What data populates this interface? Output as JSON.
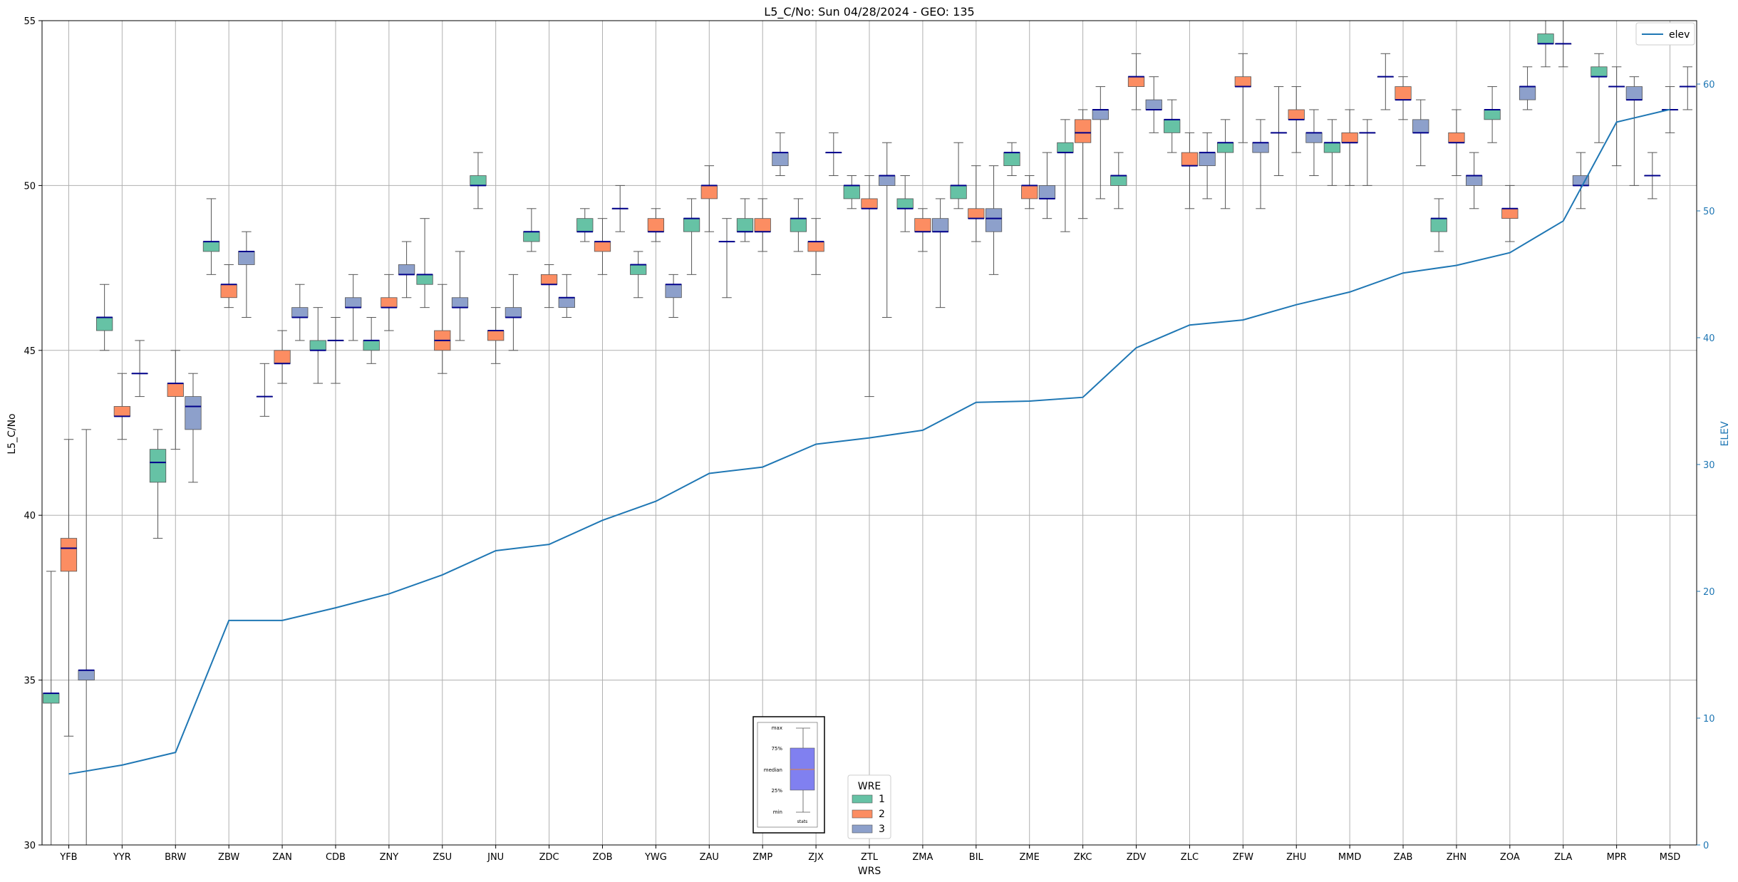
{
  "chart_data": {
    "type": "box",
    "title": "L5_C/No: Sun 04/28/2024 - GEO: 135",
    "xlabel": "WRS",
    "ylabel": "L5_C/No",
    "y2label": "ELEV",
    "ylim": [
      30,
      55
    ],
    "y2lim": [
      0,
      65
    ],
    "yticks": [
      30,
      35,
      40,
      45,
      50,
      55
    ],
    "y2ticks": [
      0,
      10,
      20,
      30,
      40,
      50,
      60
    ],
    "grid": true,
    "colors": {
      "wre1": "#66c2a5",
      "wre2": "#fc8d62",
      "wre3": "#8da0cb",
      "elev": "#1f77b4",
      "median": "#00008b"
    },
    "categories": [
      "YFB",
      "YYR",
      "BRW",
      "ZBW",
      "ZAN",
      "CDB",
      "ZNY",
      "ZSU",
      "JNU",
      "ZDC",
      "ZOB",
      "YWG",
      "ZAU",
      "ZMP",
      "ZJX",
      "ZTL",
      "ZMA",
      "BIL",
      "ZME",
      "ZKC",
      "ZDV",
      "ZLC",
      "ZFW",
      "ZHU",
      "MMD",
      "ZAB",
      "ZHN",
      "ZOA",
      "ZLA",
      "MPR",
      "MSD"
    ],
    "legend_wre": {
      "title": "WRE",
      "entries": [
        "1",
        "2",
        "3"
      ]
    },
    "legend_elev": {
      "label": "elev",
      "position": "upper-right"
    },
    "legend_key": {
      "labels": [
        "max",
        "75%",
        "median",
        "25%",
        "min"
      ],
      "caption": "stats"
    },
    "boxes": [
      {
        "s": "YFB",
        "w": 1,
        "min": 30.0,
        "q1": 34.3,
        "med": 34.6,
        "q3": 34.6,
        "max": 38.3
      },
      {
        "s": "YFB",
        "w": 2,
        "min": 33.3,
        "q1": 38.3,
        "med": 39.0,
        "q3": 39.3,
        "max": 42.3
      },
      {
        "s": "YFB",
        "w": 3,
        "min": 30.0,
        "q1": 35.0,
        "med": 35.3,
        "q3": 35.3,
        "max": 42.6
      },
      {
        "s": "YYR",
        "w": 1,
        "min": 45.0,
        "q1": 45.6,
        "med": 46.0,
        "q3": 46.0,
        "max": 47.0
      },
      {
        "s": "YYR",
        "w": 2,
        "min": 42.3,
        "q1": 43.0,
        "med": 43.0,
        "q3": 43.3,
        "max": 44.3
      },
      {
        "s": "YYR",
        "w": 3,
        "min": 43.6,
        "q1": 44.3,
        "med": 44.3,
        "q3": 44.3,
        "max": 45.3
      },
      {
        "s": "BRW",
        "w": 1,
        "min": 39.3,
        "q1": 41.0,
        "med": 41.6,
        "q3": 42.0,
        "max": 42.6
      },
      {
        "s": "BRW",
        "w": 2,
        "min": 42.0,
        "q1": 43.6,
        "med": 44.0,
        "q3": 44.0,
        "max": 45.0
      },
      {
        "s": "BRW",
        "w": 3,
        "min": 41.0,
        "q1": 42.6,
        "med": 43.3,
        "q3": 43.6,
        "max": 44.3
      },
      {
        "s": "ZBW",
        "w": 1,
        "min": 47.3,
        "q1": 48.0,
        "med": 48.3,
        "q3": 48.3,
        "max": 49.6
      },
      {
        "s": "ZBW",
        "w": 2,
        "min": 46.3,
        "q1": 46.6,
        "med": 47.0,
        "q3": 47.0,
        "max": 47.6
      },
      {
        "s": "ZBW",
        "w": 3,
        "min": 46.0,
        "q1": 47.6,
        "med": 48.0,
        "q3": 48.0,
        "max": 48.6
      },
      {
        "s": "ZAN",
        "w": 1,
        "min": 43.0,
        "q1": 43.6,
        "med": 43.6,
        "q3": 43.6,
        "max": 44.6
      },
      {
        "s": "ZAN",
        "w": 2,
        "min": 44.0,
        "q1": 44.6,
        "med": 44.6,
        "q3": 45.0,
        "max": 45.6
      },
      {
        "s": "ZAN",
        "w": 3,
        "min": 45.3,
        "q1": 46.0,
        "med": 46.0,
        "q3": 46.3,
        "max": 47.0
      },
      {
        "s": "CDB",
        "w": 1,
        "min": 44.0,
        "q1": 45.0,
        "med": 45.0,
        "q3": 45.3,
        "max": 46.3
      },
      {
        "s": "CDB",
        "w": 2,
        "min": 44.0,
        "q1": 45.3,
        "med": 45.3,
        "q3": 45.3,
        "max": 46.0
      },
      {
        "s": "CDB",
        "w": 3,
        "min": 45.3,
        "q1": 46.3,
        "med": 46.3,
        "q3": 46.6,
        "max": 47.3
      },
      {
        "s": "ZNY",
        "w": 1,
        "min": 44.6,
        "q1": 45.0,
        "med": 45.3,
        "q3": 45.3,
        "max": 46.0
      },
      {
        "s": "ZNY",
        "w": 2,
        "min": 45.6,
        "q1": 46.3,
        "med": 46.3,
        "q3": 46.6,
        "max": 47.3
      },
      {
        "s": "ZNY",
        "w": 3,
        "min": 46.6,
        "q1": 47.3,
        "med": 47.3,
        "q3": 47.6,
        "max": 48.3
      },
      {
        "s": "ZSU",
        "w": 1,
        "min": 46.3,
        "q1": 47.0,
        "med": 47.3,
        "q3": 47.3,
        "max": 49.0
      },
      {
        "s": "ZSU",
        "w": 2,
        "min": 44.3,
        "q1": 45.0,
        "med": 45.3,
        "q3": 45.6,
        "max": 47.0
      },
      {
        "s": "ZSU",
        "w": 3,
        "min": 45.3,
        "q1": 46.3,
        "med": 46.3,
        "q3": 46.6,
        "max": 48.0
      },
      {
        "s": "JNU",
        "w": 1,
        "min": 49.3,
        "q1": 50.0,
        "med": 50.0,
        "q3": 50.3,
        "max": 51.0
      },
      {
        "s": "JNU",
        "w": 2,
        "min": 44.6,
        "q1": 45.3,
        "med": 45.6,
        "q3": 45.6,
        "max": 46.3
      },
      {
        "s": "JNU",
        "w": 3,
        "min": 45.0,
        "q1": 46.0,
        "med": 46.0,
        "q3": 46.3,
        "max": 47.3
      },
      {
        "s": "ZDC",
        "w": 1,
        "min": 48.0,
        "q1": 48.3,
        "med": 48.6,
        "q3": 48.6,
        "max": 49.3
      },
      {
        "s": "ZDC",
        "w": 2,
        "min": 46.3,
        "q1": 47.0,
        "med": 47.0,
        "q3": 47.3,
        "max": 47.6
      },
      {
        "s": "ZDC",
        "w": 3,
        "min": 46.0,
        "q1": 46.3,
        "med": 46.6,
        "q3": 46.6,
        "max": 47.3
      },
      {
        "s": "ZOB",
        "w": 1,
        "min": 48.3,
        "q1": 48.6,
        "med": 48.6,
        "q3": 49.0,
        "max": 49.3
      },
      {
        "s": "ZOB",
        "w": 2,
        "min": 47.3,
        "q1": 48.0,
        "med": 48.3,
        "q3": 48.3,
        "max": 49.0
      },
      {
        "s": "ZOB",
        "w": 3,
        "min": 48.6,
        "q1": 49.3,
        "med": 49.3,
        "q3": 49.3,
        "max": 50.0
      },
      {
        "s": "YWG",
        "w": 1,
        "min": 46.6,
        "q1": 47.3,
        "med": 47.6,
        "q3": 47.6,
        "max": 48.0
      },
      {
        "s": "YWG",
        "w": 2,
        "min": 48.3,
        "q1": 48.6,
        "med": 48.6,
        "q3": 49.0,
        "max": 49.3
      },
      {
        "s": "YWG",
        "w": 3,
        "min": 46.0,
        "q1": 46.6,
        "med": 47.0,
        "q3": 47.0,
        "max": 47.3
      },
      {
        "s": "ZAU",
        "w": 1,
        "min": 47.3,
        "q1": 48.6,
        "med": 49.0,
        "q3": 49.0,
        "max": 49.6
      },
      {
        "s": "ZAU",
        "w": 2,
        "min": 48.6,
        "q1": 49.6,
        "med": 50.0,
        "q3": 50.0,
        "max": 50.6
      },
      {
        "s": "ZAU",
        "w": 3,
        "min": 46.6,
        "q1": 48.3,
        "med": 48.3,
        "q3": 48.3,
        "max": 49.0
      },
      {
        "s": "ZMP",
        "w": 1,
        "min": 48.3,
        "q1": 48.6,
        "med": 48.6,
        "q3": 49.0,
        "max": 49.6
      },
      {
        "s": "ZMP",
        "w": 2,
        "min": 48.0,
        "q1": 48.6,
        "med": 48.6,
        "q3": 49.0,
        "max": 49.6
      },
      {
        "s": "ZMP",
        "w": 3,
        "min": 50.3,
        "q1": 50.6,
        "med": 51.0,
        "q3": 51.0,
        "max": 51.6
      },
      {
        "s": "ZJX",
        "w": 1,
        "min": 48.0,
        "q1": 48.6,
        "med": 49.0,
        "q3": 49.0,
        "max": 49.6
      },
      {
        "s": "ZJX",
        "w": 2,
        "min": 47.3,
        "q1": 48.0,
        "med": 48.3,
        "q3": 48.3,
        "max": 49.0
      },
      {
        "s": "ZJX",
        "w": 3,
        "min": 50.3,
        "q1": 51.0,
        "med": 51.0,
        "q3": 51.0,
        "max": 51.6
      },
      {
        "s": "ZTL",
        "w": 1,
        "min": 49.3,
        "q1": 49.6,
        "med": 50.0,
        "q3": 50.0,
        "max": 50.3
      },
      {
        "s": "ZTL",
        "w": 2,
        "min": 43.6,
        "q1": 49.3,
        "med": 49.3,
        "q3": 49.6,
        "max": 50.3
      },
      {
        "s": "ZTL",
        "w": 3,
        "min": 46.0,
        "q1": 50.0,
        "med": 50.3,
        "q3": 50.3,
        "max": 51.3
      },
      {
        "s": "ZMA",
        "w": 1,
        "min": 48.6,
        "q1": 49.3,
        "med": 49.3,
        "q3": 49.6,
        "max": 50.3
      },
      {
        "s": "ZMA",
        "w": 2,
        "min": 48.0,
        "q1": 48.6,
        "med": 48.6,
        "q3": 49.0,
        "max": 49.3
      },
      {
        "s": "ZMA",
        "w": 3,
        "min": 46.3,
        "q1": 48.6,
        "med": 48.6,
        "q3": 49.0,
        "max": 49.6
      },
      {
        "s": "BIL",
        "w": 1,
        "min": 49.3,
        "q1": 49.6,
        "med": 50.0,
        "q3": 50.0,
        "max": 51.3
      },
      {
        "s": "BIL",
        "w": 2,
        "min": 48.3,
        "q1": 49.0,
        "med": 49.0,
        "q3": 49.3,
        "max": 50.6
      },
      {
        "s": "BIL",
        "w": 3,
        "min": 47.3,
        "q1": 48.6,
        "med": 49.0,
        "q3": 49.3,
        "max": 50.6
      },
      {
        "s": "ZME",
        "w": 1,
        "min": 50.3,
        "q1": 50.6,
        "med": 51.0,
        "q3": 51.0,
        "max": 51.3
      },
      {
        "s": "ZME",
        "w": 2,
        "min": 49.3,
        "q1": 49.6,
        "med": 50.0,
        "q3": 50.0,
        "max": 50.3
      },
      {
        "s": "ZME",
        "w": 3,
        "min": 49.0,
        "q1": 49.6,
        "med": 49.6,
        "q3": 50.0,
        "max": 51.0
      },
      {
        "s": "ZKC",
        "w": 1,
        "min": 48.6,
        "q1": 51.0,
        "med": 51.0,
        "q3": 51.3,
        "max": 52.0
      },
      {
        "s": "ZKC",
        "w": 2,
        "min": 49.0,
        "q1": 51.3,
        "med": 51.6,
        "q3": 52.0,
        "max": 52.3
      },
      {
        "s": "ZKC",
        "w": 3,
        "min": 49.6,
        "q1": 52.0,
        "med": 52.3,
        "q3": 52.3,
        "max": 53.0
      },
      {
        "s": "ZDV",
        "w": 1,
        "min": 49.3,
        "q1": 50.0,
        "med": 50.3,
        "q3": 50.3,
        "max": 51.0
      },
      {
        "s": "ZDV",
        "w": 2,
        "min": 52.3,
        "q1": 53.0,
        "med": 53.3,
        "q3": 53.3,
        "max": 54.0
      },
      {
        "s": "ZDV",
        "w": 3,
        "min": 51.6,
        "q1": 52.3,
        "med": 52.3,
        "q3": 52.6,
        "max": 53.3
      },
      {
        "s": "ZLC",
        "w": 1,
        "min": 51.0,
        "q1": 51.6,
        "med": 52.0,
        "q3": 52.0,
        "max": 52.6
      },
      {
        "s": "ZLC",
        "w": 2,
        "min": 49.3,
        "q1": 50.6,
        "med": 50.6,
        "q3": 51.0,
        "max": 51.6
      },
      {
        "s": "ZLC",
        "w": 3,
        "min": 49.6,
        "q1": 50.6,
        "med": 51.0,
        "q3": 51.0,
        "max": 51.6
      },
      {
        "s": "ZFW",
        "w": 1,
        "min": 49.3,
        "q1": 51.0,
        "med": 51.3,
        "q3": 51.3,
        "max": 52.0
      },
      {
        "s": "ZFW",
        "w": 2,
        "min": 51.3,
        "q1": 53.0,
        "med": 53.0,
        "q3": 53.3,
        "max": 54.0
      },
      {
        "s": "ZFW",
        "w": 3,
        "min": 49.3,
        "q1": 51.0,
        "med": 51.3,
        "q3": 51.3,
        "max": 52.0
      },
      {
        "s": "ZHU",
        "w": 1,
        "min": 50.3,
        "q1": 51.6,
        "med": 51.6,
        "q3": 51.6,
        "max": 53.0
      },
      {
        "s": "ZHU",
        "w": 2,
        "min": 51.0,
        "q1": 52.0,
        "med": 52.0,
        "q3": 52.3,
        "max": 53.0
      },
      {
        "s": "ZHU",
        "w": 3,
        "min": 50.3,
        "q1": 51.3,
        "med": 51.6,
        "q3": 51.6,
        "max": 52.3
      },
      {
        "s": "MMD",
        "w": 1,
        "min": 50.0,
        "q1": 51.0,
        "med": 51.3,
        "q3": 51.3,
        "max": 52.0
      },
      {
        "s": "MMD",
        "w": 2,
        "min": 50.0,
        "q1": 51.3,
        "med": 51.3,
        "q3": 51.6,
        "max": 52.3
      },
      {
        "s": "MMD",
        "w": 3,
        "min": 50.0,
        "q1": 51.6,
        "med": 51.6,
        "q3": 51.6,
        "max": 52.0
      },
      {
        "s": "ZAB",
        "w": 1,
        "min": 52.3,
        "q1": 53.3,
        "med": 53.3,
        "q3": 53.3,
        "max": 54.0
      },
      {
        "s": "ZAB",
        "w": 2,
        "min": 52.0,
        "q1": 52.6,
        "med": 52.6,
        "q3": 53.0,
        "max": 53.3
      },
      {
        "s": "ZAB",
        "w": 3,
        "min": 50.6,
        "q1": 51.6,
        "med": 51.6,
        "q3": 52.0,
        "max": 52.6
      },
      {
        "s": "ZHN",
        "w": 1,
        "min": 48.0,
        "q1": 48.6,
        "med": 49.0,
        "q3": 49.0,
        "max": 49.6
      },
      {
        "s": "ZHN",
        "w": 2,
        "min": 50.3,
        "q1": 51.3,
        "med": 51.3,
        "q3": 51.6,
        "max": 52.3
      },
      {
        "s": "ZHN",
        "w": 3,
        "min": 49.3,
        "q1": 50.0,
        "med": 50.3,
        "q3": 50.3,
        "max": 51.0
      },
      {
        "s": "ZOA",
        "w": 1,
        "min": 51.3,
        "q1": 52.0,
        "med": 52.3,
        "q3": 52.3,
        "max": 53.0
      },
      {
        "s": "ZOA",
        "w": 2,
        "min": 48.3,
        "q1": 49.0,
        "med": 49.3,
        "q3": 49.3,
        "max": 50.0
      },
      {
        "s": "ZOA",
        "w": 3,
        "min": 52.3,
        "q1": 52.6,
        "med": 53.0,
        "q3": 53.0,
        "max": 53.6
      },
      {
        "s": "ZLA",
        "w": 1,
        "min": 53.6,
        "q1": 54.3,
        "med": 54.3,
        "q3": 54.6,
        "max": 55.0
      },
      {
        "s": "ZLA",
        "w": 2,
        "min": 53.6,
        "q1": 54.3,
        "med": 54.3,
        "q3": 54.3,
        "max": 55.0
      },
      {
        "s": "ZLA",
        "w": 3,
        "min": 49.3,
        "q1": 50.0,
        "med": 50.0,
        "q3": 50.3,
        "max": 51.0
      },
      {
        "s": "MPR",
        "w": 1,
        "min": 51.3,
        "q1": 53.3,
        "med": 53.3,
        "q3": 53.6,
        "max": 54.0
      },
      {
        "s": "MPR",
        "w": 2,
        "min": 50.6,
        "q1": 53.0,
        "med": 53.0,
        "q3": 53.0,
        "max": 53.6
      },
      {
        "s": "MPR",
        "w": 3,
        "min": 50.0,
        "q1": 52.6,
        "med": 52.6,
        "q3": 53.0,
        "max": 53.3
      },
      {
        "s": "MSD",
        "w": 1,
        "min": 49.6,
        "q1": 50.3,
        "med": 50.3,
        "q3": 50.3,
        "max": 51.0
      },
      {
        "s": "MSD",
        "w": 2,
        "min": 51.6,
        "q1": 52.3,
        "med": 52.3,
        "q3": 52.3,
        "max": 53.0
      },
      {
        "s": "MSD",
        "w": 3,
        "min": 52.3,
        "q1": 53.0,
        "med": 53.0,
        "q3": 53.0,
        "max": 53.6
      }
    ],
    "elev": [
      {
        "s": "YFB",
        "v": 5.6
      },
      {
        "s": "YYR",
        "v": 6.3
      },
      {
        "s": "BRW",
        "v": 7.3
      },
      {
        "s": "ZBW",
        "v": 17.7
      },
      {
        "s": "ZAN",
        "v": 17.7
      },
      {
        "s": "CDB",
        "v": 18.7
      },
      {
        "s": "ZNY",
        "v": 19.8
      },
      {
        "s": "ZSU",
        "v": 21.3
      },
      {
        "s": "JNU",
        "v": 23.2
      },
      {
        "s": "ZDC",
        "v": 23.7
      },
      {
        "s": "ZOB",
        "v": 25.6
      },
      {
        "s": "YWG",
        "v": 27.1
      },
      {
        "s": "ZAU",
        "v": 29.3
      },
      {
        "s": "ZMP",
        "v": 29.8
      },
      {
        "s": "ZJX",
        "v": 31.6
      },
      {
        "s": "ZTL",
        "v": 32.1
      },
      {
        "s": "ZMA",
        "v": 32.7
      },
      {
        "s": "BIL",
        "v": 34.9
      },
      {
        "s": "ZME",
        "v": 35.0
      },
      {
        "s": "ZKC",
        "v": 35.3
      },
      {
        "s": "ZDV",
        "v": 39.2
      },
      {
        "s": "ZLC",
        "v": 41.0
      },
      {
        "s": "ZFW",
        "v": 41.4
      },
      {
        "s": "ZHU",
        "v": 42.6
      },
      {
        "s": "MMD",
        "v": 43.6
      },
      {
        "s": "ZAB",
        "v": 45.1
      },
      {
        "s": "ZHN",
        "v": 45.7
      },
      {
        "s": "ZOA",
        "v": 46.7
      },
      {
        "s": "ZLA",
        "v": 49.2
      },
      {
        "s": "MPR",
        "v": 57.0
      },
      {
        "s": "MSD",
        "v": 58.0
      }
    ]
  }
}
